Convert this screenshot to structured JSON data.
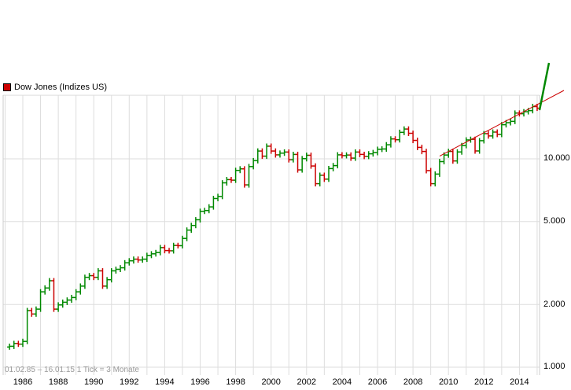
{
  "legend": {
    "label": "Dow Jones (Indizes US)",
    "color": "#cc0000"
  },
  "range_note": "01.02.85 – 16.01.15   1 Tick = 3 Monate",
  "colors": {
    "up": "#008800",
    "down": "#cc0000",
    "trend": "#cc0000",
    "grid": "#dddddd"
  },
  "chart_data": {
    "type": "ohlc",
    "title": "Dow Jones (Indizes US)",
    "subtitle": "01.02.85 - 16.01.15, 1 Tick = 3 Monate",
    "xlabel": "",
    "ylabel": "",
    "yscale": "log",
    "ylim": [
      1000,
      20200
    ],
    "xlim": [
      1985.1,
      2015.2
    ],
    "y_ticks": [
      {
        "value": 1000,
        "label": "1.000"
      },
      {
        "value": 2000,
        "label": "2.000"
      },
      {
        "value": 5000,
        "label": "5.000"
      },
      {
        "value": 10000,
        "label": "10.000"
      }
    ],
    "x_ticks": [
      "1986",
      "1988",
      "1990",
      "1992",
      "1994",
      "1996",
      "1998",
      "2000",
      "2002",
      "2004",
      "2006",
      "2008",
      "2010",
      "2012",
      "2014"
    ],
    "grid": true,
    "legend_position": "top-left",
    "series": [
      {
        "name": "Dow Jones (Indizes US)",
        "quarterly_close_approx": [
          [
            1985.25,
            1260
          ],
          [
            1985.5,
            1300
          ],
          [
            1985.75,
            1290
          ],
          [
            1986.0,
            1330
          ],
          [
            1986.25,
            1870
          ],
          [
            1986.5,
            1800
          ],
          [
            1986.75,
            1900
          ],
          [
            1987.0,
            2300
          ],
          [
            1987.25,
            2400
          ],
          [
            1987.5,
            2600
          ],
          [
            1987.75,
            1900
          ],
          [
            1988.0,
            1990
          ],
          [
            1988.25,
            2050
          ],
          [
            1988.5,
            2100
          ],
          [
            1988.75,
            2160
          ],
          [
            1989.0,
            2300
          ],
          [
            1989.25,
            2450
          ],
          [
            1989.5,
            2700
          ],
          [
            1989.75,
            2750
          ],
          [
            1990.0,
            2700
          ],
          [
            1990.25,
            2900
          ],
          [
            1990.5,
            2450
          ],
          [
            1990.75,
            2630
          ],
          [
            1991.0,
            2900
          ],
          [
            1991.25,
            2950
          ],
          [
            1991.5,
            3000
          ],
          [
            1991.75,
            3170
          ],
          [
            1992.0,
            3240
          ],
          [
            1992.25,
            3300
          ],
          [
            1992.5,
            3270
          ],
          [
            1992.75,
            3300
          ],
          [
            1993.0,
            3440
          ],
          [
            1993.25,
            3500
          ],
          [
            1993.5,
            3550
          ],
          [
            1993.75,
            3750
          ],
          [
            1994.0,
            3630
          ],
          [
            1994.25,
            3620
          ],
          [
            1994.5,
            3840
          ],
          [
            1994.75,
            3830
          ],
          [
            1995.0,
            4150
          ],
          [
            1995.25,
            4550
          ],
          [
            1995.5,
            4790
          ],
          [
            1995.75,
            5100
          ],
          [
            1996.0,
            5600
          ],
          [
            1996.25,
            5650
          ],
          [
            1996.5,
            5880
          ],
          [
            1996.75,
            6450
          ],
          [
            1997.0,
            6600
          ],
          [
            1997.25,
            7670
          ],
          [
            1997.5,
            7950
          ],
          [
            1997.75,
            7900
          ],
          [
            1998.0,
            8800
          ],
          [
            1998.25,
            8950
          ],
          [
            1998.5,
            7500
          ],
          [
            1998.75,
            9180
          ],
          [
            1999.0,
            9800
          ],
          [
            1999.25,
            10900
          ],
          [
            1999.5,
            10300
          ],
          [
            1999.75,
            11500
          ],
          [
            2000.0,
            10900
          ],
          [
            2000.25,
            10450
          ],
          [
            2000.5,
            10650
          ],
          [
            2000.75,
            10780
          ],
          [
            2001.0,
            9900
          ],
          [
            2001.25,
            10500
          ],
          [
            2001.5,
            8850
          ],
          [
            2001.75,
            10020
          ],
          [
            2002.0,
            10400
          ],
          [
            2002.25,
            9240
          ],
          [
            2002.5,
            7600
          ],
          [
            2002.75,
            8340
          ],
          [
            2003.0,
            7990
          ],
          [
            2003.25,
            8980
          ],
          [
            2003.5,
            9280
          ],
          [
            2003.75,
            10450
          ],
          [
            2004.0,
            10360
          ],
          [
            2004.25,
            10430
          ],
          [
            2004.5,
            10080
          ],
          [
            2004.75,
            10780
          ],
          [
            2005.0,
            10500
          ],
          [
            2005.25,
            10270
          ],
          [
            2005.5,
            10570
          ],
          [
            2005.75,
            10720
          ],
          [
            2006.0,
            11110
          ],
          [
            2006.25,
            11150
          ],
          [
            2006.5,
            11680
          ],
          [
            2006.75,
            12460
          ],
          [
            2007.0,
            12350
          ],
          [
            2007.25,
            13400
          ],
          [
            2007.5,
            13900
          ],
          [
            2007.75,
            13260
          ],
          [
            2008.0,
            12260
          ],
          [
            2008.25,
            11350
          ],
          [
            2008.5,
            10850
          ],
          [
            2008.75,
            8780
          ],
          [
            2009.0,
            7600
          ],
          [
            2009.25,
            8450
          ],
          [
            2009.5,
            9700
          ],
          [
            2009.75,
            10430
          ],
          [
            2010.0,
            10850
          ],
          [
            2010.25,
            9770
          ],
          [
            2010.5,
            10790
          ],
          [
            2010.75,
            11580
          ],
          [
            2011.0,
            12320
          ],
          [
            2011.25,
            12410
          ],
          [
            2011.5,
            10910
          ],
          [
            2011.75,
            12220
          ],
          [
            2012.0,
            13210
          ],
          [
            2012.25,
            12880
          ],
          [
            2012.5,
            13440
          ],
          [
            2012.75,
            13100
          ],
          [
            2013.0,
            14580
          ],
          [
            2013.25,
            14910
          ],
          [
            2013.5,
            15130
          ],
          [
            2013.75,
            16580
          ],
          [
            2014.0,
            16460
          ],
          [
            2014.25,
            16830
          ],
          [
            2014.5,
            17040
          ],
          [
            2014.75,
            17820
          ],
          [
            2015.0,
            17500
          ]
        ]
      }
    ],
    "trendline": {
      "from": [
        2009.5,
        10300
      ],
      "to": [
        2016.5,
        19900
      ]
    },
    "projection_line": {
      "from": [
        2015.05,
        17200
      ],
      "to": [
        2015.6,
        22000
      ],
      "color": "#008800"
    }
  }
}
